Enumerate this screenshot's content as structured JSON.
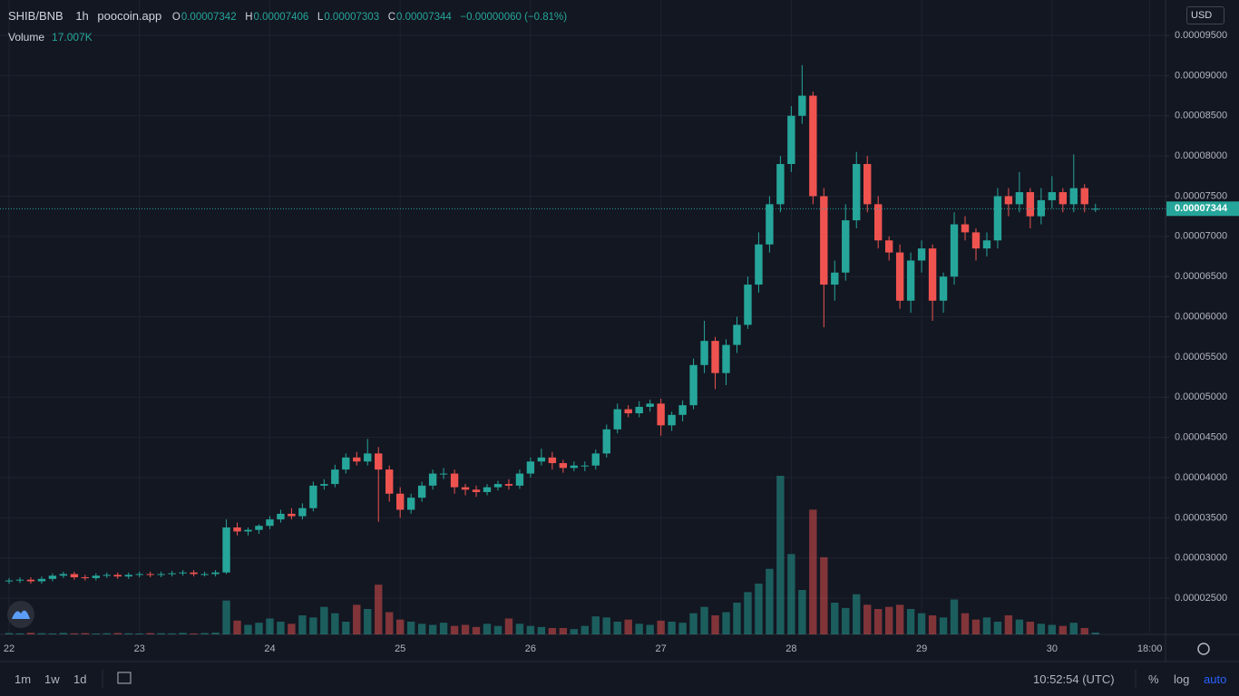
{
  "header": {
    "symbol": "SHIB/BNB",
    "interval": "1h",
    "source": "poocoin.app",
    "open_label": "O",
    "high_label": "H",
    "low_label": "L",
    "close_label": "C",
    "change": "−0.00000060 (−0.81%)",
    "volume_label": "Volume",
    "volume_value": "17.007K",
    "currency": "USD"
  },
  "chart_data": {
    "type": "candlestick",
    "x": [
      0,
      2,
      4,
      6,
      8,
      10,
      12,
      14,
      16,
      18,
      20,
      22,
      24,
      26,
      28,
      30,
      32,
      34,
      36,
      38,
      40,
      42,
      44,
      46,
      48,
      50,
      52,
      54,
      56,
      58,
      60,
      62,
      64,
      66,
      68,
      70,
      72,
      74,
      76,
      78,
      80,
      82,
      84,
      86,
      88,
      90,
      92,
      94,
      96,
      98,
      100,
      102,
      104,
      106,
      108,
      110,
      112,
      114,
      116,
      118,
      120,
      122,
      124,
      126,
      128,
      130,
      132,
      134,
      136,
      138,
      140,
      142,
      144,
      146,
      148,
      150,
      152,
      154,
      156,
      158,
      160,
      162,
      164,
      166,
      168,
      170,
      172,
      174,
      176,
      178,
      180,
      182,
      184,
      186,
      188,
      190,
      192,
      194,
      196,
      198,
      200
    ],
    "open": [
      2.71e-05,
      2.72e-05,
      2.73e-05,
      2.71e-05,
      2.74e-05,
      2.78e-05,
      2.8e-05,
      2.76e-05,
      2.75e-05,
      2.78e-05,
      2.79e-05,
      2.77e-05,
      2.79e-05,
      2.8e-05,
      2.79e-05,
      2.8e-05,
      2.81e-05,
      2.82e-05,
      2.8e-05,
      2.8e-05,
      2.82e-05,
      3.38e-05,
      3.33e-05,
      3.35e-05,
      3.4e-05,
      3.48e-05,
      3.55e-05,
      3.52e-05,
      3.62e-05,
      3.9e-05,
      3.92e-05,
      4.1e-05,
      4.25e-05,
      4.2e-05,
      4.3e-05,
      4.1e-05,
      3.8e-05,
      3.6e-05,
      3.75e-05,
      3.9e-05,
      4.05e-05,
      4.05e-05,
      3.88e-05,
      3.85e-05,
      3.82e-05,
      3.88e-05,
      3.92e-05,
      3.9e-05,
      4.05e-05,
      4.2e-05,
      4.25e-05,
      4.18e-05,
      4.12e-05,
      4.15e-05,
      4.15e-05,
      4.3e-05,
      4.6e-05,
      4.85e-05,
      4.8e-05,
      4.88e-05,
      4.92e-05,
      4.65e-05,
      4.78e-05,
      4.9e-05,
      5.4e-05,
      5.7e-05,
      5.3e-05,
      5.65e-05,
      5.9e-05,
      6.4e-05,
      6.9e-05,
      7.4e-05,
      7.9e-05,
      8.5e-05,
      8.75e-05,
      7.5e-05,
      6.4e-05,
      6.55e-05,
      7.2e-05,
      7.9e-05,
      7.4e-05,
      6.95e-05,
      6.8e-05,
      6.2e-05,
      6.7e-05,
      6.85e-05,
      6.2e-05,
      6.5e-05,
      7.15e-05,
      7.05e-05,
      6.85e-05,
      6.95e-05,
      7.5e-05,
      7.4e-05,
      7.55e-05,
      7.25e-05,
      7.45e-05,
      7.55e-05,
      7.4e-05,
      7.6e-05,
      7.342e-05
    ],
    "high": [
      2.75e-05,
      2.76e-05,
      2.76e-05,
      2.77e-05,
      2.81e-05,
      2.83e-05,
      2.83e-05,
      2.79e-05,
      2.81e-05,
      2.82e-05,
      2.82e-05,
      2.82e-05,
      2.83e-05,
      2.83e-05,
      2.83e-05,
      2.84e-05,
      2.85e-05,
      2.85e-05,
      2.83e-05,
      2.85e-05,
      3.48e-05,
      3.44e-05,
      3.38e-05,
      3.42e-05,
      3.52e-05,
      3.6e-05,
      3.62e-05,
      3.68e-05,
      3.95e-05,
      3.98e-05,
      4.16e-05,
      4.3e-05,
      4.32e-05,
      4.48e-05,
      4.38e-05,
      4.15e-05,
      3.88e-05,
      3.8e-05,
      3.95e-05,
      4.1e-05,
      4.12e-05,
      4.1e-05,
      3.92e-05,
      3.9e-05,
      3.92e-05,
      3.96e-05,
      3.98e-05,
      4.1e-05,
      4.25e-05,
      4.36e-05,
      4.32e-05,
      4.22e-05,
      4.2e-05,
      4.2e-05,
      4.35e-05,
      4.66e-05,
      4.92e-05,
      4.9e-05,
      4.95e-05,
      4.97e-05,
      4.98e-05,
      4.82e-05,
      4.96e-05,
      5.48e-05,
      5.95e-05,
      5.75e-05,
      5.72e-05,
      6e-05,
      6.5e-05,
      7.05e-05,
      7.5e-05,
      8e-05,
      8.62e-05,
      9.13e-05,
      8.8e-05,
      7.6e-05,
      6.7e-05,
      7.4e-05,
      8.05e-05,
      8e-05,
      7.5e-05,
      7e-05,
      6.9e-05,
      6.8e-05,
      6.95e-05,
      6.9e-05,
      6.55e-05,
      7.3e-05,
      7.25e-05,
      7.1e-05,
      7.05e-05,
      7.6e-05,
      7.6e-05,
      7.8e-05,
      7.6e-05,
      7.6e-05,
      7.75e-05,
      7.6e-05,
      8.02e-05,
      7.65e-05,
      7.406e-05
    ],
    "low": [
      2.68e-05,
      2.69e-05,
      2.68e-05,
      2.68e-05,
      2.71e-05,
      2.75e-05,
      2.73e-05,
      2.72e-05,
      2.72e-05,
      2.75e-05,
      2.74e-05,
      2.74e-05,
      2.76e-05,
      2.76e-05,
      2.76e-05,
      2.77e-05,
      2.78e-05,
      2.77e-05,
      2.77e-05,
      2.77e-05,
      2.8e-05,
      3.28e-05,
      3.28e-05,
      3.3e-05,
      3.36e-05,
      3.44e-05,
      3.48e-05,
      3.48e-05,
      3.58e-05,
      3.85e-05,
      3.88e-05,
      4.05e-05,
      4.15e-05,
      4.15e-05,
      3.45e-05,
      3.7e-05,
      3.5e-05,
      3.55e-05,
      3.7e-05,
      3.85e-05,
      3.98e-05,
      3.8e-05,
      3.78e-05,
      3.76e-05,
      3.78e-05,
      3.84e-05,
      3.85e-05,
      3.86e-05,
      4e-05,
      4.15e-05,
      4.1e-05,
      4.06e-05,
      4.08e-05,
      4.08e-05,
      4.1e-05,
      4.25e-05,
      4.55e-05,
      4.75e-05,
      4.75e-05,
      4.82e-05,
      4.52e-05,
      4.58e-05,
      4.7e-05,
      4.85e-05,
      5.3e-05,
      5.1e-05,
      5.15e-05,
      5.55e-05,
      5.85e-05,
      6.3e-05,
      6.8e-05,
      7.3e-05,
      7.8e-05,
      8.4e-05,
      7.4e-05,
      5.87e-05,
      6.2e-05,
      6.45e-05,
      7.1e-05,
      7.3e-05,
      6.85e-05,
      6.7e-05,
      6.1e-05,
      6.05e-05,
      6.55e-05,
      5.95e-05,
      6.05e-05,
      6.4e-05,
      6.95e-05,
      6.7e-05,
      6.75e-05,
      6.85e-05,
      7.25e-05,
      7.3e-05,
      7.1e-05,
      7.15e-05,
      7.35e-05,
      7.3e-05,
      7.3e-05,
      7.3e-05,
      7.303e-05
    ],
    "close": [
      2.72e-05,
      2.73e-05,
      2.71e-05,
      2.74e-05,
      2.78e-05,
      2.8e-05,
      2.76e-05,
      2.75e-05,
      2.78e-05,
      2.79e-05,
      2.77e-05,
      2.79e-05,
      2.8e-05,
      2.79e-05,
      2.8e-05,
      2.81e-05,
      2.82e-05,
      2.8e-05,
      2.8e-05,
      2.82e-05,
      3.38e-05,
      3.33e-05,
      3.35e-05,
      3.4e-05,
      3.48e-05,
      3.55e-05,
      3.52e-05,
      3.62e-05,
      3.9e-05,
      3.92e-05,
      4.1e-05,
      4.25e-05,
      4.2e-05,
      4.3e-05,
      4.1e-05,
      3.8e-05,
      3.6e-05,
      3.75e-05,
      3.9e-05,
      4.05e-05,
      4.05e-05,
      3.88e-05,
      3.85e-05,
      3.82e-05,
      3.88e-05,
      3.92e-05,
      3.9e-05,
      4.05e-05,
      4.2e-05,
      4.25e-05,
      4.18e-05,
      4.12e-05,
      4.15e-05,
      4.15e-05,
      4.3e-05,
      4.6e-05,
      4.85e-05,
      4.8e-05,
      4.88e-05,
      4.92e-05,
      4.65e-05,
      4.78e-05,
      4.9e-05,
      5.4e-05,
      5.7e-05,
      5.3e-05,
      5.65e-05,
      5.9e-05,
      6.4e-05,
      6.9e-05,
      7.4e-05,
      7.9e-05,
      8.5e-05,
      8.75e-05,
      7.5e-05,
      6.4e-05,
      6.55e-05,
      7.2e-05,
      7.9e-05,
      7.4e-05,
      6.95e-05,
      6.8e-05,
      6.2e-05,
      6.7e-05,
      6.85e-05,
      6.2e-05,
      6.5e-05,
      7.15e-05,
      7.05e-05,
      6.85e-05,
      6.95e-05,
      7.5e-05,
      7.4e-05,
      7.55e-05,
      7.25e-05,
      7.45e-05,
      7.55e-05,
      7.4e-05,
      7.6e-05,
      7.4e-05,
      7.344e-05
    ],
    "volume": [
      12,
      10,
      15,
      11,
      9,
      14,
      10,
      12,
      8,
      11,
      13,
      10,
      9,
      12,
      11,
      10,
      14,
      9,
      12,
      16,
      320,
      130,
      90,
      110,
      150,
      120,
      100,
      180,
      160,
      260,
      200,
      120,
      280,
      240,
      470,
      210,
      140,
      120,
      100,
      90,
      110,
      80,
      90,
      70,
      100,
      80,
      150,
      100,
      80,
      70,
      60,
      60,
      50,
      80,
      170,
      160,
      120,
      140,
      100,
      90,
      130,
      120,
      110,
      200,
      260,
      180,
      210,
      300,
      400,
      480,
      620,
      1500,
      760,
      420,
      1180,
      730,
      300,
      250,
      380,
      280,
      240,
      260,
      280,
      240,
      200,
      180,
      160,
      330,
      200,
      140,
      160,
      120,
      180,
      140,
      120,
      100,
      90,
      80,
      110,
      60,
      17.007
    ],
    "up_color": "#26a69a",
    "down_color": "#ef5350",
    "xlim": [
      -1.67,
      212.9
    ],
    "xticks": [
      {
        "value": 0,
        "label": "22"
      },
      {
        "value": 24,
        "label": "23"
      },
      {
        "value": 48,
        "label": "24"
      },
      {
        "value": 72,
        "label": "25"
      },
      {
        "value": 96,
        "label": "26"
      },
      {
        "value": 120,
        "label": "27"
      },
      {
        "value": 144,
        "label": "28"
      },
      {
        "value": 168,
        "label": "29"
      },
      {
        "value": 192,
        "label": "30"
      },
      {
        "value": 210,
        "label": "18:00"
      }
    ],
    "ylim": [
      2.05e-05,
      9.94e-05
    ],
    "yticks": [
      {
        "value": 2.5e-05,
        "label": "0.00002500"
      },
      {
        "value": 3e-05,
        "label": "0.00003000"
      },
      {
        "value": 3.5e-05,
        "label": "0.00003500"
      },
      {
        "value": 4e-05,
        "label": "0.00004000"
      },
      {
        "value": 4.5e-05,
        "label": "0.00004500"
      },
      {
        "value": 5e-05,
        "label": "0.00005000"
      },
      {
        "value": 5.5e-05,
        "label": "0.00005500"
      },
      {
        "value": 6e-05,
        "label": "0.00006000"
      },
      {
        "value": 6.5e-05,
        "label": "0.00006500"
      },
      {
        "value": 7e-05,
        "label": "0.00007000"
      },
      {
        "value": 7.5e-05,
        "label": "0.00007500"
      },
      {
        "value": 8e-05,
        "label": "0.00008000"
      },
      {
        "value": 8.5e-05,
        "label": "0.00008500"
      },
      {
        "value": 9e-05,
        "label": "0.00009000"
      },
      {
        "value": 9.5e-05,
        "label": "0.00009500"
      }
    ],
    "grid": true
  },
  "footer": {
    "ranges": [
      "1m",
      "1w",
      "1d"
    ],
    "time": "10:52:54 (UTC)",
    "percent": "%",
    "log": "log",
    "auto": "auto"
  }
}
